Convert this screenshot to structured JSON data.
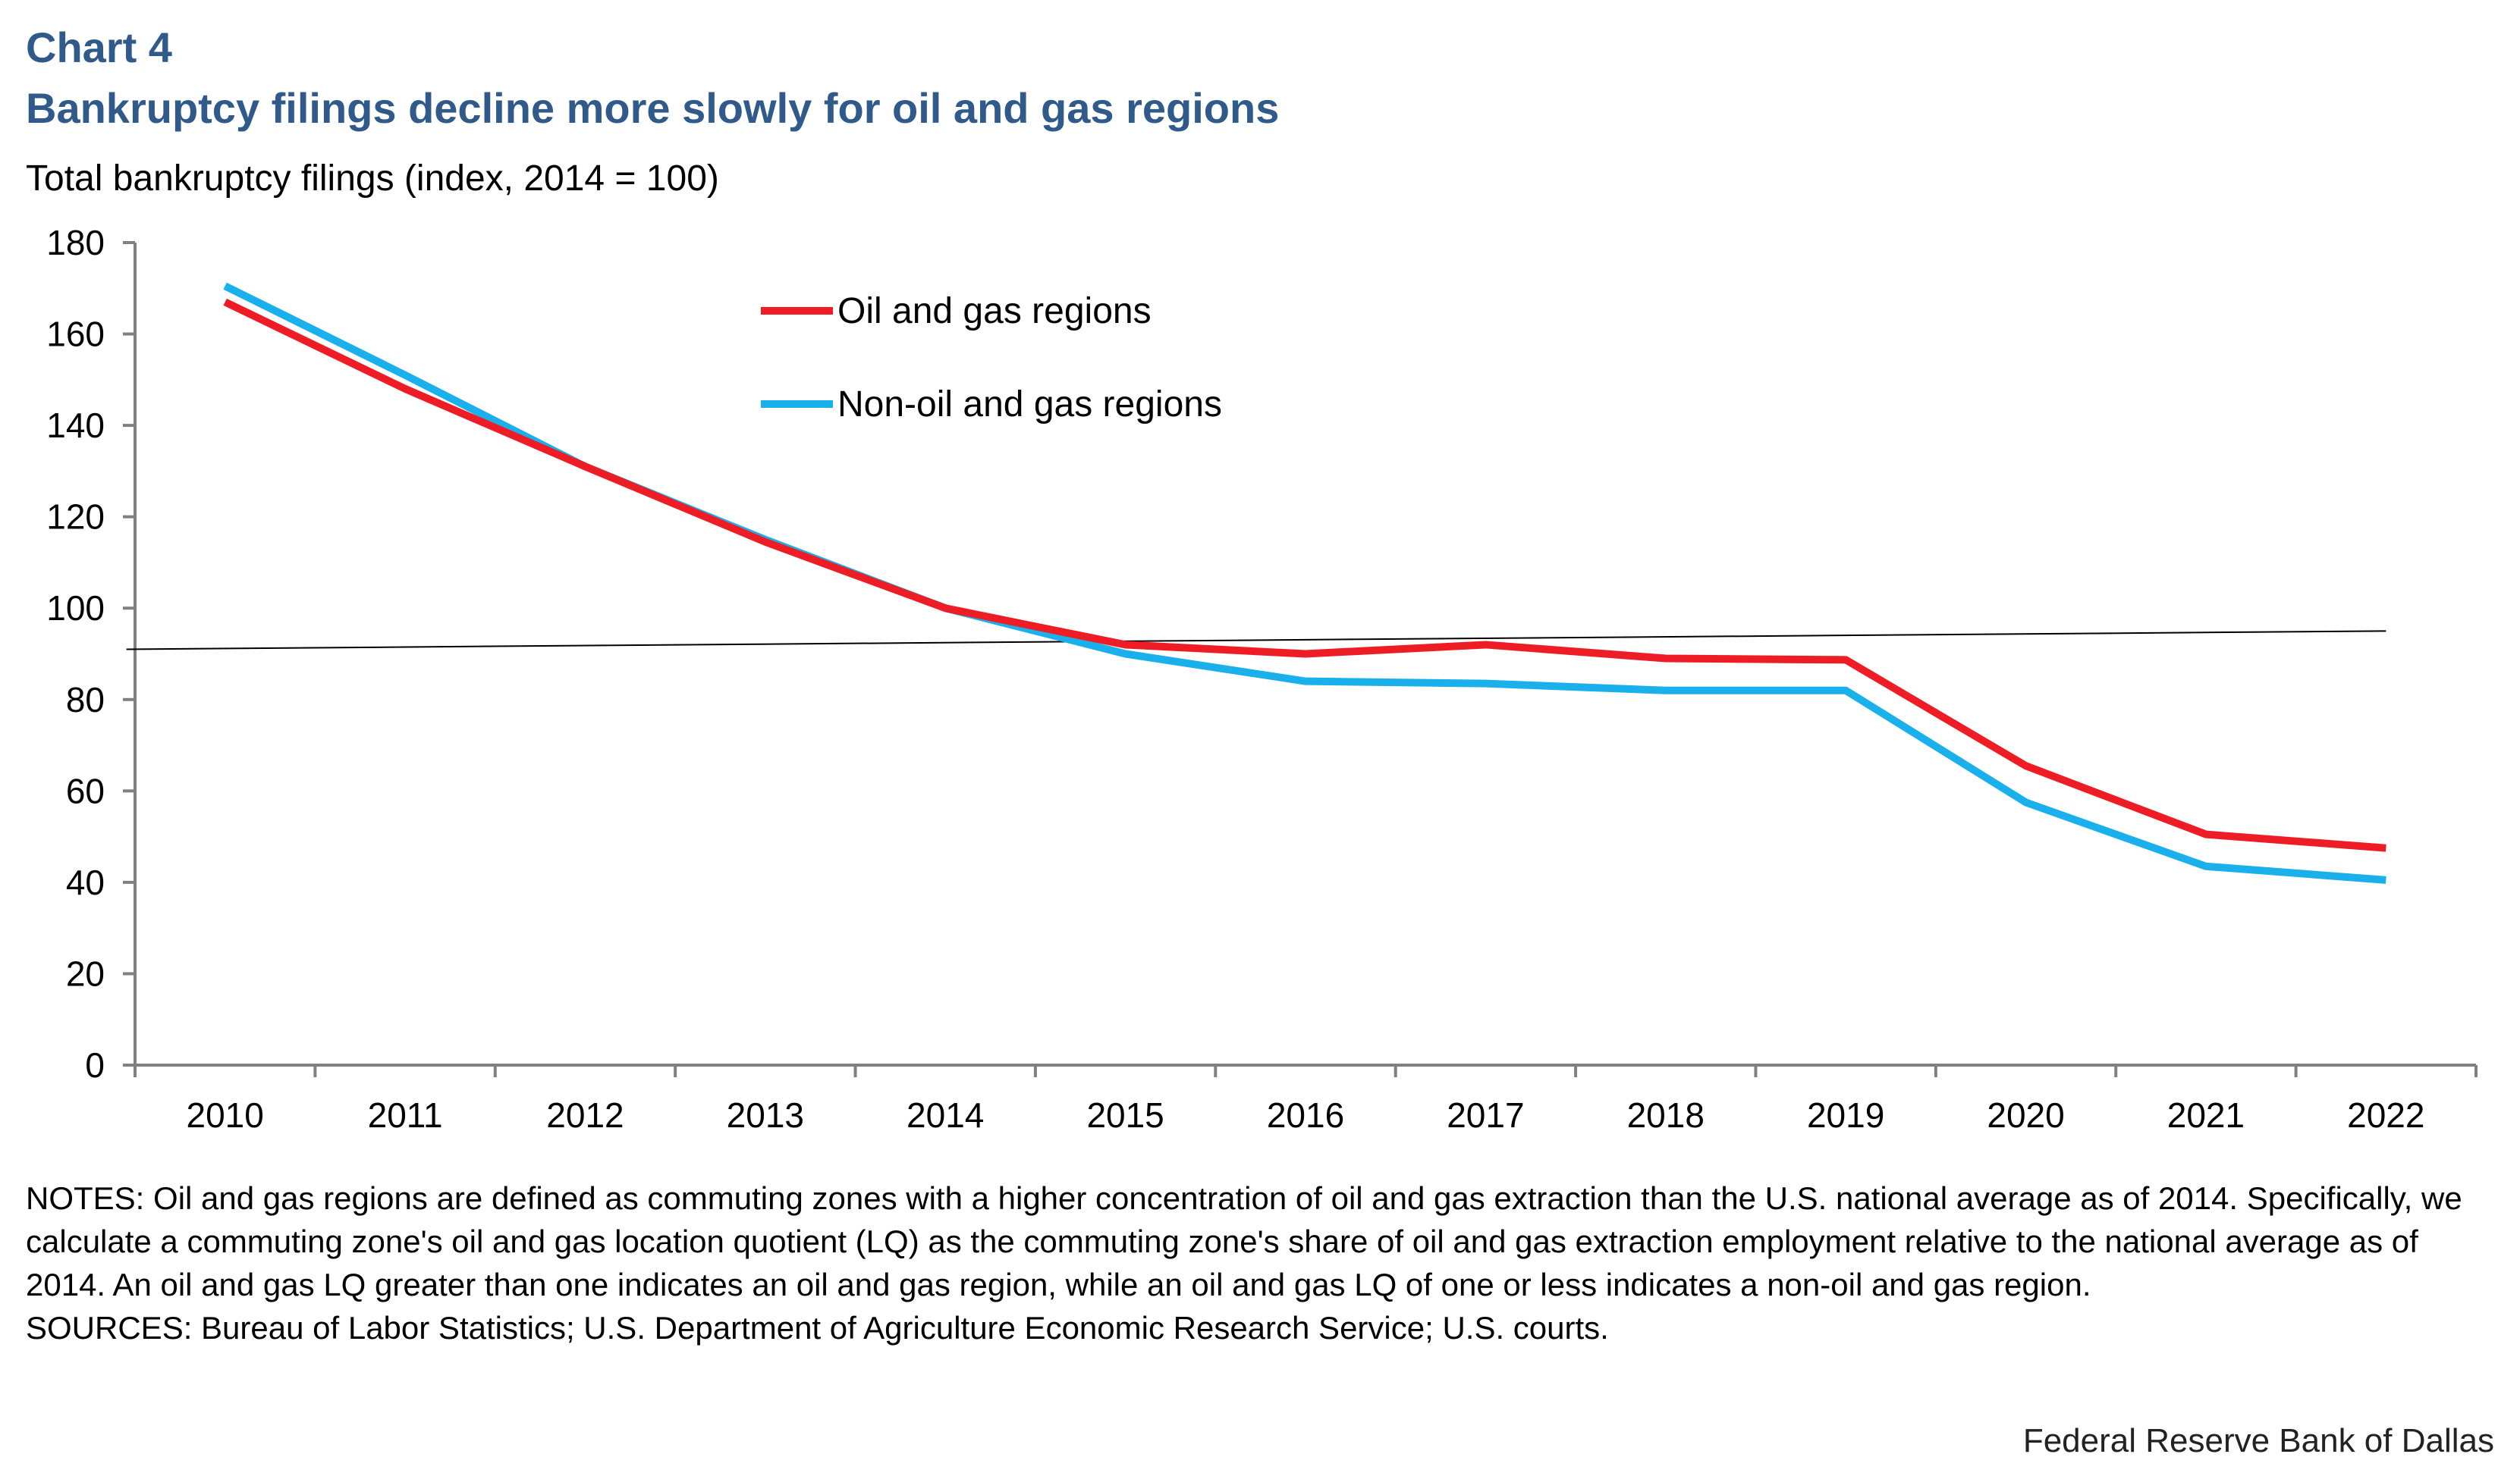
{
  "header": {
    "chart_label": "Chart 4",
    "title": "Bankruptcy filings decline more slowly for oil and gas regions",
    "y_title": "Total bankruptcy filings (index, 2014 = 100)"
  },
  "chart_data": {
    "type": "line",
    "title": "Bankruptcy filings decline more slowly for oil and gas regions",
    "xlabel": "",
    "ylabel": "Total bankruptcy filings (index, 2014 = 100)",
    "ylim": [
      0,
      180
    ],
    "yticks": [
      0,
      20,
      40,
      60,
      80,
      100,
      120,
      140,
      160,
      180
    ],
    "x": [
      "2010",
      "2011",
      "2012",
      "2013",
      "2014",
      "2015",
      "2016",
      "2017",
      "2018",
      "2019",
      "2020",
      "2021",
      "2022"
    ],
    "series": [
      {
        "name": "Oil and gas regions",
        "color": "#ee1c25",
        "values": [
          167,
          148,
          131,
          114.5,
          100,
          92,
          90,
          92,
          89,
          88.7,
          65.5,
          50.5,
          47.5
        ]
      },
      {
        "name": "Non-oil and gas regions",
        "color": "#1ab0ec",
        "values": [
          170.5,
          151,
          131,
          115,
          100,
          90,
          84,
          83.5,
          82,
          82,
          57.5,
          43.5,
          40.5
        ]
      }
    ],
    "trend_line": {
      "color": "#000000",
      "start": 91,
      "end": 95
    },
    "legend_position": "top-center",
    "grid": false
  },
  "notes": {
    "text": "NOTES: Oil and gas regions are defined as commuting zones with a higher concentration of oil and gas extraction than the U.S. national average as of 2014. Specifically, we calculate a commuting zone's oil and gas location quotient (LQ) as the commuting zone's share of oil and gas extraction employment relative to the national average as of 2014. An oil and gas LQ greater than one indicates an oil and gas region, while an oil and gas LQ of one or less indicates a non-oil and gas region.",
    "sources": "SOURCES: Bureau of Labor Statistics; U.S. Department of Agriculture Economic Research Service; U.S. courts."
  },
  "footer": {
    "source_credit": "Federal Reserve Bank of Dallas"
  }
}
